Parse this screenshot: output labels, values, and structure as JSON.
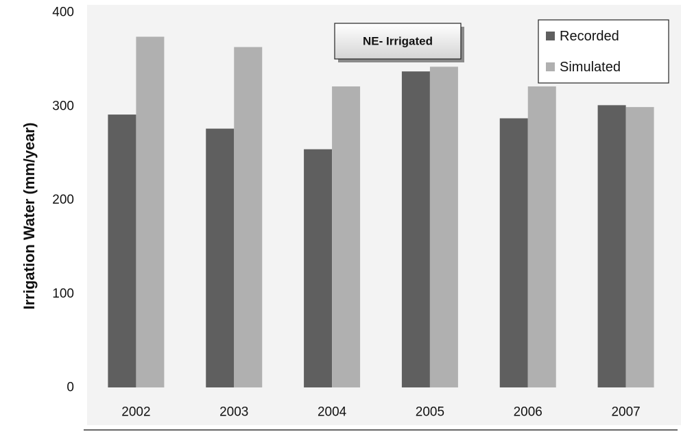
{
  "chart_data": {
    "type": "bar",
    "title": "",
    "annotation": "NE- Irrigated",
    "xlabel": "",
    "ylabel": "Irrigation Water (mm/year)",
    "ylim": [
      0,
      400
    ],
    "yticks": [
      0,
      100,
      200,
      300,
      400
    ],
    "grid": false,
    "legend_position": "top-right",
    "categories": [
      "2002",
      "2003",
      "2004",
      "2005",
      "2006",
      "2007"
    ],
    "series": [
      {
        "name": "Recorded",
        "color": "#5f5f5f",
        "values": [
          291,
          276,
          254,
          337,
          287,
          301
        ]
      },
      {
        "name": "Simulated",
        "color": "#b0b0b0",
        "values": [
          374,
          363,
          321,
          342,
          321,
          299
        ]
      }
    ]
  }
}
